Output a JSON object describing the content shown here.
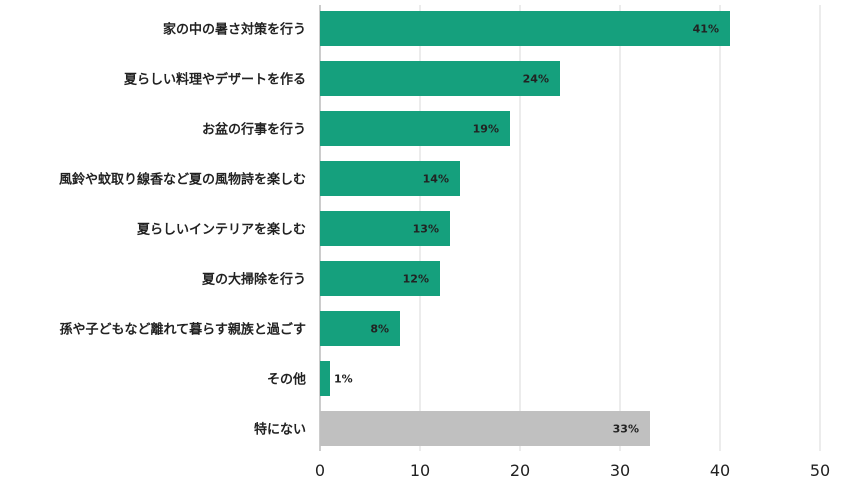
{
  "chart_data": {
    "type": "bar",
    "orientation": "horizontal",
    "categories": [
      "家の中の暑さ対策を行う",
      "夏らしい料理やデザートを作る",
      "お盆の行事を行う",
      "風鈴や蚊取り線香など夏の風物詩を楽しむ",
      "夏らしいインテリアを楽しむ",
      "夏の大掃除を行う",
      "孫や子どもなど離れて暮らす親族と過ごす",
      "その他",
      "特にない"
    ],
    "values": [
      41,
      24,
      19,
      14,
      13,
      12,
      8,
      1,
      33
    ],
    "value_labels": [
      "41%",
      "24%",
      "19%",
      "14%",
      "13%",
      "12%",
      "8%",
      "1%",
      "33%"
    ],
    "bar_colors": [
      "#15a07d",
      "#15a07d",
      "#15a07d",
      "#15a07d",
      "#15a07d",
      "#15a07d",
      "#15a07d",
      "#15a07d",
      "#c0c0c0"
    ],
    "xlim": [
      0,
      50
    ],
    "xticks": [
      0,
      10,
      20,
      30,
      40,
      50
    ],
    "grid": "vertical",
    "title": "",
    "xlabel": "",
    "ylabel": ""
  }
}
